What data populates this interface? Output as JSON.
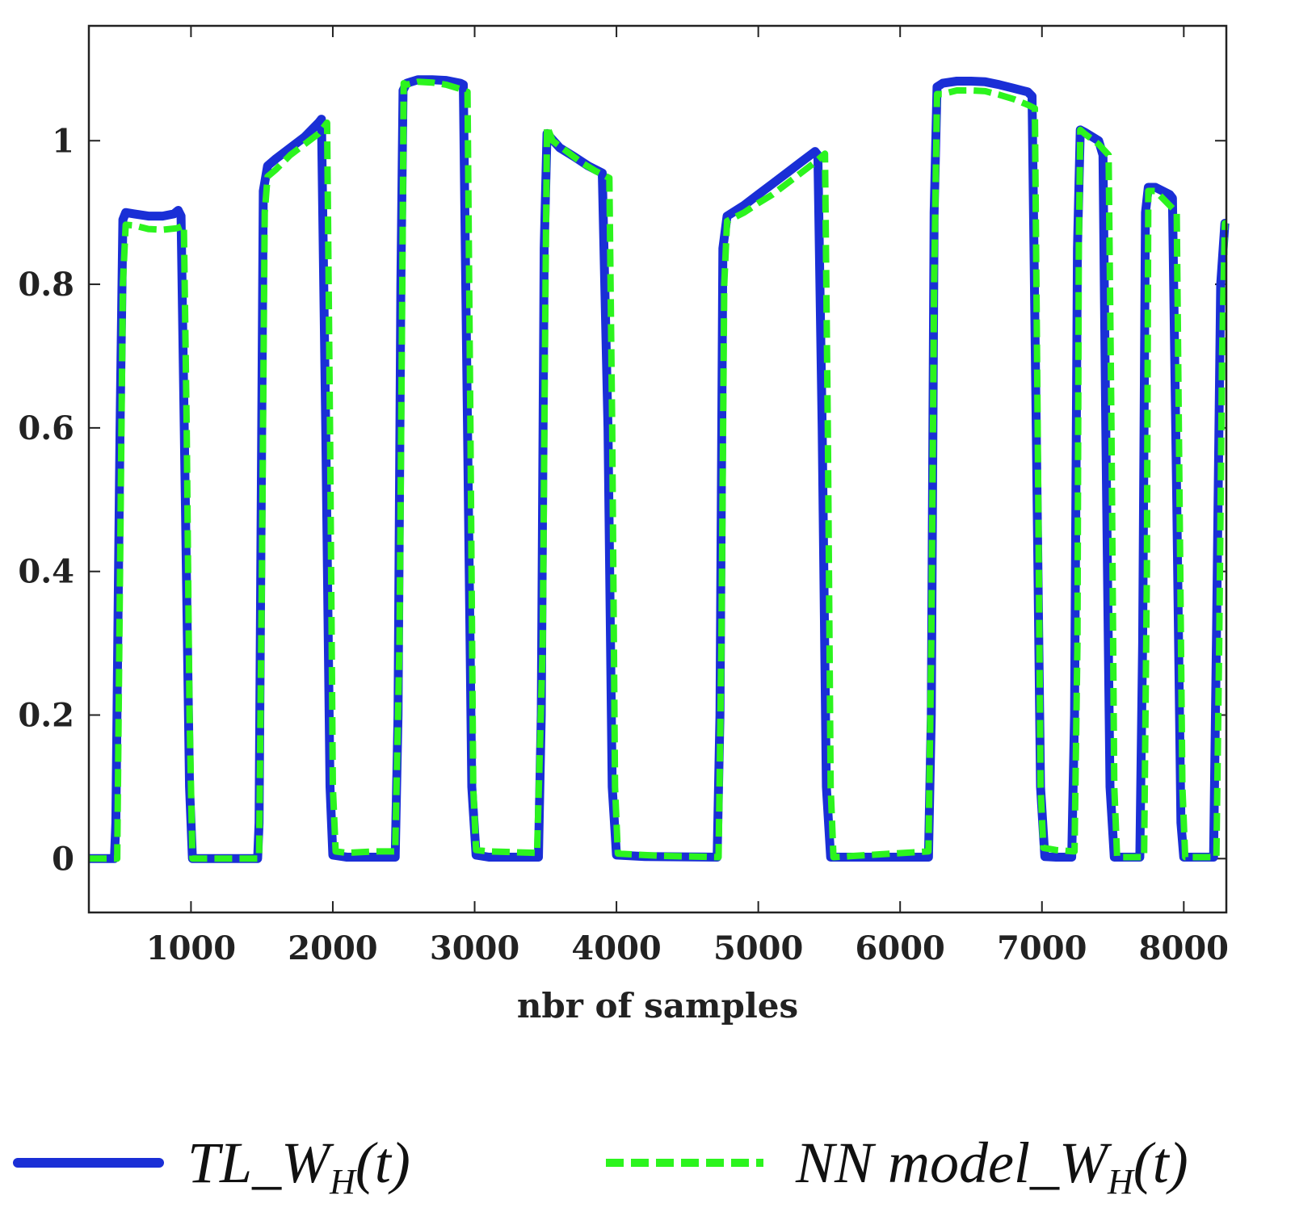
{
  "chart_data": {
    "type": "line",
    "title": "",
    "xlabel": "nbr of samples",
    "ylabel": "",
    "xlim": [
      280,
      8300
    ],
    "ylim": [
      -0.075,
      1.16
    ],
    "xticks": [
      1000,
      2000,
      3000,
      4000,
      5000,
      6000,
      7000,
      8000
    ],
    "yticks": [
      0,
      0.2,
      0.4,
      0.6,
      0.8,
      1
    ],
    "xtick_labels": [
      "1000",
      "2000",
      "3000",
      "4000",
      "5000",
      "6000",
      "7000",
      "8000"
    ],
    "ytick_labels": [
      "0",
      "0.2",
      "0.4",
      "0.6",
      "0.8",
      "1"
    ],
    "series": [
      {
        "name": "TL_W_H(t)",
        "legend_main": "TL_W",
        "legend_sub": "H",
        "legend_tail": "(t)",
        "color": "#1a2fd6",
        "style": "solid",
        "points": [
          [
            280,
            0
          ],
          [
            460,
            0
          ],
          [
            470,
            0.05
          ],
          [
            500,
            0.6
          ],
          [
            520,
            0.89
          ],
          [
            540,
            0.9
          ],
          [
            600,
            0.898
          ],
          [
            700,
            0.895
          ],
          [
            800,
            0.895
          ],
          [
            880,
            0.898
          ],
          [
            910,
            0.903
          ],
          [
            930,
            0.895
          ],
          [
            960,
            0.5
          ],
          [
            990,
            0.1
          ],
          [
            1010,
            0
          ],
          [
            1470,
            0
          ],
          [
            1480,
            0.05
          ],
          [
            1510,
            0.93
          ],
          [
            1540,
            0.965
          ],
          [
            1600,
            0.975
          ],
          [
            1700,
            0.99
          ],
          [
            1800,
            1.005
          ],
          [
            1900,
            1.025
          ],
          [
            1920,
            1.03
          ],
          [
            1950,
            0.6
          ],
          [
            1980,
            0.1
          ],
          [
            2000,
            0.005
          ],
          [
            2100,
            0.002
          ],
          [
            2440,
            0.002
          ],
          [
            2460,
            0.2
          ],
          [
            2480,
            0.8
          ],
          [
            2495,
            1.07
          ],
          [
            2520,
            1.08
          ],
          [
            2600,
            1.085
          ],
          [
            2700,
            1.085
          ],
          [
            2800,
            1.084
          ],
          [
            2900,
            1.08
          ],
          [
            2920,
            1.078
          ],
          [
            2950,
            0.6
          ],
          [
            2980,
            0.1
          ],
          [
            3010,
            0.005
          ],
          [
            3100,
            0.002
          ],
          [
            3450,
            0.002
          ],
          [
            3470,
            0.2
          ],
          [
            3490,
            0.85
          ],
          [
            3510,
            1.01
          ],
          [
            3600,
            0.99
          ],
          [
            3700,
            0.978
          ],
          [
            3800,
            0.965
          ],
          [
            3900,
            0.955
          ],
          [
            3940,
            0.6
          ],
          [
            3970,
            0.1
          ],
          [
            4000,
            0.005
          ],
          [
            4200,
            0.003
          ],
          [
            4710,
            0.002
          ],
          [
            4730,
            0.2
          ],
          [
            4750,
            0.85
          ],
          [
            4780,
            0.895
          ],
          [
            4900,
            0.91
          ],
          [
            5000,
            0.925
          ],
          [
            5100,
            0.94
          ],
          [
            5200,
            0.955
          ],
          [
            5300,
            0.97
          ],
          [
            5400,
            0.985
          ],
          [
            5420,
            0.98
          ],
          [
            5450,
            0.6
          ],
          [
            5480,
            0.1
          ],
          [
            5510,
            0.002
          ],
          [
            6000,
            0.002
          ],
          [
            6200,
            0.002
          ],
          [
            6220,
            0.2
          ],
          [
            6240,
            0.9
          ],
          [
            6260,
            1.075
          ],
          [
            6300,
            1.08
          ],
          [
            6400,
            1.083
          ],
          [
            6500,
            1.083
          ],
          [
            6600,
            1.082
          ],
          [
            6700,
            1.078
          ],
          [
            6800,
            1.073
          ],
          [
            6900,
            1.068
          ],
          [
            6930,
            1.062
          ],
          [
            6960,
            0.6
          ],
          [
            6990,
            0.1
          ],
          [
            7020,
            0.003
          ],
          [
            7100,
            0.002
          ],
          [
            7210,
            0.002
          ],
          [
            7230,
            0.2
          ],
          [
            7250,
            0.85
          ],
          [
            7270,
            1.015
          ],
          [
            7300,
            1.012
          ],
          [
            7400,
            1.0
          ],
          [
            7430,
            0.98
          ],
          [
            7450,
            0.6
          ],
          [
            7480,
            0.1
          ],
          [
            7510,
            0.002
          ],
          [
            7690,
            0.002
          ],
          [
            7710,
            0.3
          ],
          [
            7730,
            0.9
          ],
          [
            7750,
            0.935
          ],
          [
            7800,
            0.935
          ],
          [
            7900,
            0.925
          ],
          [
            7920,
            0.92
          ],
          [
            7950,
            0.5
          ],
          [
            7980,
            0.05
          ],
          [
            8000,
            0.002
          ],
          [
            8210,
            0.002
          ],
          [
            8230,
            0.3
          ],
          [
            8260,
            0.8
          ],
          [
            8290,
            0.885
          ],
          [
            8300,
            0.885
          ]
        ]
      },
      {
        "name": "NN model_W_H(t)",
        "legend_main": "NN model_W",
        "legend_sub": "H",
        "legend_tail": "(t)",
        "color": "#2cf41e",
        "style": "dashed",
        "points": [
          [
            280,
            0
          ],
          [
            480,
            0
          ],
          [
            500,
            0.4
          ],
          [
            520,
            0.8
          ],
          [
            540,
            0.883
          ],
          [
            600,
            0.882
          ],
          [
            700,
            0.877
          ],
          [
            800,
            0.876
          ],
          [
            900,
            0.878
          ],
          [
            950,
            0.882
          ],
          [
            970,
            0.6
          ],
          [
            990,
            0.2
          ],
          [
            1010,
            0
          ],
          [
            1480,
            0
          ],
          [
            1500,
            0.4
          ],
          [
            1520,
            0.9
          ],
          [
            1540,
            0.95
          ],
          [
            1600,
            0.96
          ],
          [
            1700,
            0.98
          ],
          [
            1800,
            0.995
          ],
          [
            1900,
            1.01
          ],
          [
            1960,
            1.025
          ],
          [
            1980,
            0.6
          ],
          [
            2000,
            0.1
          ],
          [
            2020,
            0.01
          ],
          [
            2100,
            0.008
          ],
          [
            2200,
            0.009
          ],
          [
            2300,
            0.01
          ],
          [
            2440,
            0.01
          ],
          [
            2470,
            0.3
          ],
          [
            2490,
            0.8
          ],
          [
            2500,
            1.08
          ],
          [
            2520,
            1.078
          ],
          [
            2600,
            1.082
          ],
          [
            2700,
            1.081
          ],
          [
            2800,
            1.078
          ],
          [
            2900,
            1.072
          ],
          [
            2950,
            1.068
          ],
          [
            2970,
            0.6
          ],
          [
            2990,
            0.1
          ],
          [
            3010,
            0.012
          ],
          [
            3100,
            0.01
          ],
          [
            3440,
            0.008
          ],
          [
            3480,
            0.3
          ],
          [
            3500,
            0.8
          ],
          [
            3510,
            1.02
          ],
          [
            3550,
            1.0
          ],
          [
            3650,
            0.985
          ],
          [
            3750,
            0.97
          ],
          [
            3850,
            0.958
          ],
          [
            3950,
            0.948
          ],
          [
            3970,
            0.6
          ],
          [
            3990,
            0.1
          ],
          [
            4010,
            0.007
          ],
          [
            4300,
            0.004
          ],
          [
            4720,
            0.002
          ],
          [
            4740,
            0.3
          ],
          [
            4760,
            0.8
          ],
          [
            4780,
            0.888
          ],
          [
            4900,
            0.9
          ],
          [
            5000,
            0.913
          ],
          [
            5100,
            0.925
          ],
          [
            5200,
            0.94
          ],
          [
            5300,
            0.955
          ],
          [
            5400,
            0.97
          ],
          [
            5470,
            0.982
          ],
          [
            5490,
            0.6
          ],
          [
            5510,
            0.1
          ],
          [
            5530,
            0.002
          ],
          [
            6200,
            0.01
          ],
          [
            6220,
            0.3
          ],
          [
            6240,
            0.8
          ],
          [
            6260,
            1.065
          ],
          [
            6300,
            1.065
          ],
          [
            6400,
            1.07
          ],
          [
            6500,
            1.07
          ],
          [
            6600,
            1.069
          ],
          [
            6700,
            1.064
          ],
          [
            6800,
            1.058
          ],
          [
            6900,
            1.05
          ],
          [
            6950,
            1.045
          ],
          [
            6970,
            0.6
          ],
          [
            6990,
            0.1
          ],
          [
            7010,
            0.015
          ],
          [
            7100,
            0.012
          ],
          [
            7230,
            0.01
          ],
          [
            7250,
            0.3
          ],
          [
            7260,
            0.85
          ],
          [
            7270,
            1.015
          ],
          [
            7300,
            1.01
          ],
          [
            7400,
            0.995
          ],
          [
            7470,
            0.98
          ],
          [
            7490,
            0.6
          ],
          [
            7510,
            0.1
          ],
          [
            7530,
            0.002
          ],
          [
            7720,
            0.002
          ],
          [
            7740,
            0.4
          ],
          [
            7750,
            0.93
          ],
          [
            7800,
            0.93
          ],
          [
            7900,
            0.91
          ],
          [
            7950,
            0.9
          ],
          [
            7970,
            0.5
          ],
          [
            7990,
            0.1
          ],
          [
            8010,
            0.002
          ],
          [
            8230,
            0.002
          ],
          [
            8250,
            0.3
          ],
          [
            8270,
            0.7
          ],
          [
            8290,
            0.885
          ],
          [
            8300,
            0.885
          ]
        ]
      }
    ],
    "legend_position": "bottom"
  }
}
